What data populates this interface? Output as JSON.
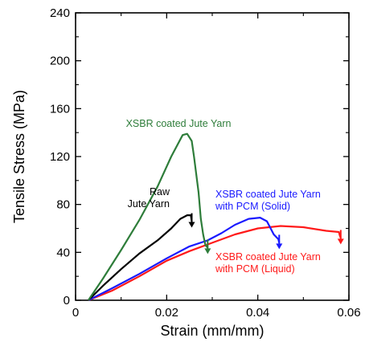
{
  "chart_data": {
    "type": "line",
    "title": "",
    "xlabel": "Strain (mm/mm)",
    "ylabel": "Tensile Stress (MPa)",
    "xlim": [
      0,
      0.06
    ],
    "ylim": [
      0,
      240
    ],
    "x_ticks": [
      0,
      0.02,
      0.04,
      0.06
    ],
    "x_tick_labels": [
      "0",
      "0.02",
      "0.04",
      "0.06"
    ],
    "y_ticks": [
      0,
      40,
      80,
      120,
      160,
      200,
      240
    ],
    "y_tick_labels": [
      "0",
      "40",
      "80",
      "120",
      "160",
      "200",
      "240"
    ],
    "grid": false,
    "legend": "none",
    "series": [
      {
        "name": "XSBR coated Jute Yarn",
        "color": "#2e7d3a",
        "points": [
          [
            0.0028,
            0
          ],
          [
            0.006,
            18
          ],
          [
            0.01,
            42
          ],
          [
            0.014,
            67
          ],
          [
            0.018,
            95
          ],
          [
            0.021,
            120
          ],
          [
            0.0235,
            138
          ],
          [
            0.0245,
            139
          ],
          [
            0.0255,
            133
          ],
          [
            0.026,
            120
          ],
          [
            0.027,
            90
          ],
          [
            0.0275,
            68
          ],
          [
            0.028,
            55
          ],
          [
            0.0285,
            46
          ],
          [
            0.029,
            44
          ]
        ]
      },
      {
        "name": "Raw Jute Yarn",
        "color": "#000000",
        "points": [
          [
            0.0028,
            0
          ],
          [
            0.006,
            12
          ],
          [
            0.01,
            26
          ],
          [
            0.014,
            39
          ],
          [
            0.018,
            50
          ],
          [
            0.021,
            60
          ],
          [
            0.023,
            68
          ],
          [
            0.0245,
            71
          ],
          [
            0.0253,
            71
          ],
          [
            0.0255,
            66
          ]
        ]
      },
      {
        "name": "XSBR coated Jute Yarn with PCM (Solid)",
        "color": "#1a1aff",
        "points": [
          [
            0.0028,
            0
          ],
          [
            0.008,
            10
          ],
          [
            0.014,
            22
          ],
          [
            0.02,
            35
          ],
          [
            0.025,
            45
          ],
          [
            0.029,
            50
          ],
          [
            0.032,
            56
          ],
          [
            0.035,
            63
          ],
          [
            0.038,
            68
          ],
          [
            0.0405,
            69
          ],
          [
            0.042,
            66
          ],
          [
            0.0435,
            55
          ],
          [
            0.0445,
            51
          ],
          [
            0.0447,
            48
          ]
        ]
      },
      {
        "name": "XSBR coated Jute Yarn with PCM (Liquid)",
        "color": "#ff1a1a",
        "points": [
          [
            0.0028,
            0
          ],
          [
            0.008,
            8
          ],
          [
            0.014,
            20
          ],
          [
            0.02,
            33
          ],
          [
            0.025,
            41
          ],
          [
            0.03,
            48
          ],
          [
            0.035,
            55
          ],
          [
            0.04,
            60
          ],
          [
            0.045,
            62
          ],
          [
            0.05,
            61
          ],
          [
            0.055,
            58
          ],
          [
            0.0578,
            57
          ],
          [
            0.058,
            54
          ],
          [
            0.0582,
            52
          ]
        ]
      }
    ],
    "annotations": [
      {
        "lines": [
          "XSBR coated Jute Yarn"
        ],
        "color": "#2e7d3a"
      },
      {
        "lines": [
          "Raw",
          "Jute Yarn"
        ],
        "color": "#000000"
      },
      {
        "lines": [
          "XSBR coated Jute Yarn",
          "with PCM (Solid)"
        ],
        "color": "#1a1aff"
      },
      {
        "lines": [
          "XSBR coated Jute Yarn",
          "with PCM (Liquid)"
        ],
        "color": "#ff1a1a"
      }
    ]
  }
}
